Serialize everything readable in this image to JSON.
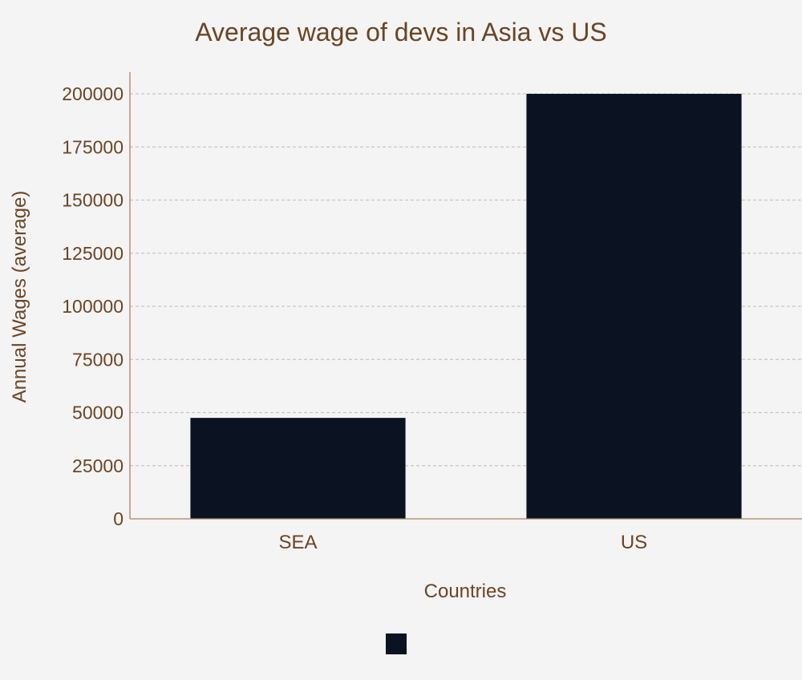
{
  "chart_data": {
    "type": "bar",
    "title": "Average wage of devs in Asia vs US",
    "xlabel": "Countries",
    "ylabel": "Annual Wages (average)",
    "categories": [
      "SEA",
      "US"
    ],
    "series": [
      {
        "values": [
          47500,
          200000
        ]
      }
    ],
    "ylim": [
      0,
      200000
    ],
    "yticks": [
      "0",
      "25000",
      "50000",
      "75000",
      "100000",
      "125000",
      "150000",
      "175000",
      "200000"
    ],
    "grid": "horizontal",
    "legend_position": "bottom",
    "colors": {
      "bar": "#0b1322",
      "text": "#6b4524",
      "grid": "#c9c3bd",
      "axis": "#a88262",
      "background": "#f4f4f4"
    }
  }
}
